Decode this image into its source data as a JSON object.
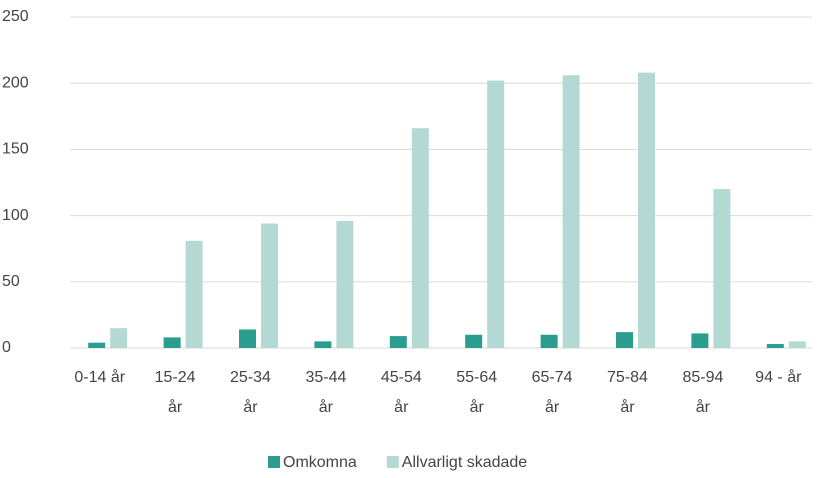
{
  "chart_data": {
    "type": "bar",
    "categories": [
      "0-14 år",
      "15-24\når",
      "25-34\når",
      "35-44\når",
      "45-54\når",
      "55-64\når",
      "65-74\når",
      "75-84\når",
      "85-94\når",
      "94 - år"
    ],
    "series": [
      {
        "name": "Omkomna",
        "color": "#2a9d8f",
        "values": [
          4,
          8,
          14,
          5,
          9,
          10,
          10,
          12,
          11,
          3
        ]
      },
      {
        "name": "Allvarligt skadade",
        "color": "#b4d9d4",
        "values": [
          15,
          81,
          94,
          96,
          166,
          202,
          206,
          208,
          120,
          5
        ]
      }
    ],
    "ylim": [
      0,
      250
    ],
    "yticks": [
      0,
      50,
      100,
      150,
      200,
      250
    ],
    "grid": true,
    "legend": "bottom"
  }
}
